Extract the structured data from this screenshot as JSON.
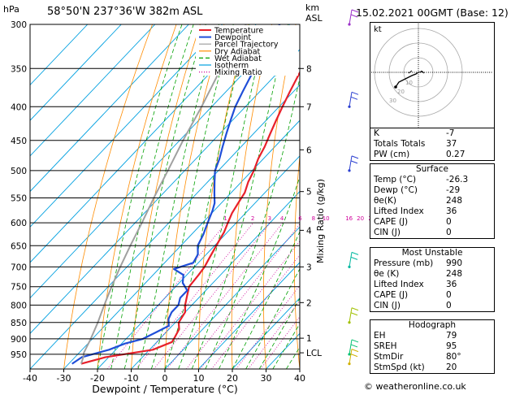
{
  "header": {
    "pressure_unit": "hPa",
    "location": "58°50'N  237°36'W  382m  ASL",
    "height_unit_1": "km",
    "height_unit_2": "ASL",
    "datetime": "15.02.2021  00GMT  (Base: 12)"
  },
  "chart_data": {
    "type": "line",
    "xlabel": "Dewpoint / Temperature (°C)",
    "ylabel": "hPa",
    "right_axis_label": "Mixing Ratio (g/kg)",
    "xlim": [
      -40,
      40
    ],
    "ylim": [
      1000,
      300
    ],
    "x_ticks": [
      -40,
      -30,
      -20,
      -10,
      0,
      10,
      20,
      30,
      40
    ],
    "pressure_levels": [
      300,
      350,
      400,
      450,
      500,
      550,
      600,
      650,
      700,
      750,
      800,
      850,
      900,
      950
    ],
    "km_ticks": [
      {
        "label": "8",
        "p": 350
      },
      {
        "label": "7",
        "p": 400
      },
      {
        "label": "6",
        "p": 465
      },
      {
        "label": "5",
        "p": 538
      },
      {
        "label": "4",
        "p": 616
      },
      {
        "label": "3",
        "p": 700
      },
      {
        "label": "2",
        "p": 793
      },
      {
        "label": "1",
        "p": 898
      },
      {
        "label": "LCL",
        "p": 945
      }
    ],
    "mixing_ratio_labels": [
      "1",
      "2",
      "3",
      "4",
      "6",
      "8",
      "10",
      "16",
      "20",
      "25"
    ],
    "legend": [
      "Temperature",
      "Dewpoint",
      "Parcel Trajectory",
      "Dry Adiabat",
      "Wet Adiabat",
      "Isotherm",
      "Mixing Ratio"
    ],
    "legend_placement": "top-left",
    "series": [
      {
        "name": "Temperature",
        "color": "#e8202a",
        "points": [
          [
            -26.3,
            982
          ],
          [
            -21,
            960
          ],
          [
            -9,
            935
          ],
          [
            -5.5,
            910
          ],
          [
            -6,
            895
          ],
          [
            -7,
            870
          ],
          [
            -9,
            850
          ],
          [
            -10,
            820
          ],
          [
            -12,
            800
          ],
          [
            -14,
            775
          ],
          [
            -16,
            750
          ],
          [
            -16.5,
            720
          ],
          [
            -17,
            700
          ],
          [
            -18,
            680
          ],
          [
            -19,
            660
          ],
          [
            -20,
            640
          ],
          [
            -21,
            620
          ],
          [
            -22.5,
            600
          ],
          [
            -24,
            580
          ],
          [
            -25,
            560
          ],
          [
            -26,
            540
          ],
          [
            -28,
            520
          ],
          [
            -29.5,
            500
          ],
          [
            -31.5,
            480
          ],
          [
            -33,
            460
          ],
          [
            -35,
            440
          ],
          [
            -37,
            420
          ],
          [
            -39,
            400
          ],
          [
            -41,
            380
          ],
          [
            -43,
            360
          ],
          [
            -45,
            340
          ],
          [
            -47,
            320
          ],
          [
            -49,
            300
          ]
        ]
      },
      {
        "name": "Dewpoint",
        "color": "#1f4ed8",
        "points": [
          [
            -29,
            982
          ],
          [
            -28,
            960
          ],
          [
            -22,
            935
          ],
          [
            -19,
            915
          ],
          [
            -15,
            900
          ],
          [
            -13,
            880
          ],
          [
            -11,
            860
          ],
          [
            -12,
            850
          ],
          [
            -13,
            840
          ],
          [
            -14,
            820
          ],
          [
            -14,
            800
          ],
          [
            -15.5,
            780
          ],
          [
            -15.5,
            760
          ],
          [
            -19,
            740
          ],
          [
            -21,
            720
          ],
          [
            -25.5,
            705
          ],
          [
            -21.5,
            690
          ],
          [
            -22.5,
            670
          ],
          [
            -25,
            650
          ],
          [
            -26.5,
            625
          ],
          [
            -28.5,
            600
          ],
          [
            -30.5,
            575
          ],
          [
            -32,
            560
          ],
          [
            -35,
            540
          ],
          [
            -38,
            520
          ],
          [
            -41,
            500
          ],
          [
            -43,
            480
          ],
          [
            -45.5,
            460
          ],
          [
            -48,
            440
          ],
          [
            -50.5,
            420
          ],
          [
            -53,
            400
          ],
          [
            -55,
            380
          ],
          [
            -57,
            360
          ],
          [
            -59,
            340
          ],
          [
            -61,
            320
          ],
          [
            -63,
            300
          ]
        ]
      },
      {
        "name": "Parcel Trajectory",
        "color": "#a0a0a0",
        "points": [
          [
            -26.3,
            982
          ],
          [
            -27.5,
            960
          ],
          [
            -28.6,
            945
          ],
          [
            -30.5,
            900
          ],
          [
            -33,
            850
          ],
          [
            -36,
            800
          ],
          [
            -39,
            750
          ],
          [
            -42,
            700
          ],
          [
            -45,
            650
          ],
          [
            -48,
            600
          ],
          [
            -51.5,
            550
          ],
          [
            -55,
            500
          ],
          [
            -59,
            450
          ],
          [
            -63,
            400
          ],
          [
            -68,
            350
          ],
          [
            -73,
            300
          ]
        ]
      }
    ],
    "dry_adiabat_color": "#ff8c00",
    "wet_adiabat_color": "#00a000",
    "isotherm_color": "#00a0e0",
    "mixing_ratio_color": "#d0009a",
    "wind_barbs": [
      {
        "p": 300,
        "color": "#9b30c8"
      },
      {
        "p": 400,
        "color": "#2a3ed0"
      },
      {
        "p": 500,
        "color": "#2a3ed0"
      },
      {
        "p": 700,
        "color": "#00b8a0"
      },
      {
        "p": 850,
        "color": "#a0c000"
      },
      {
        "p": 950,
        "color": "#00c070"
      },
      {
        "p": 982,
        "color": "#d0b000"
      }
    ]
  },
  "hodograph": {
    "unit": "kt",
    "ring_labels": [
      "10",
      "20",
      "30"
    ]
  },
  "indices": [
    {
      "label": "K",
      "value": "-7"
    },
    {
      "label": "Totals Totals",
      "value": "37"
    },
    {
      "label": "PW (cm)",
      "value": "0.27"
    }
  ],
  "surface": {
    "title": "Surface",
    "rows": [
      {
        "label": "Temp (°C)",
        "value": "-26.3"
      },
      {
        "label": "Dewp (°C)",
        "value": "-29"
      },
      {
        "label": "θe(K)",
        "value": "248"
      },
      {
        "label": "Lifted Index",
        "value": "36"
      },
      {
        "label": "CAPE (J)",
        "value": "0"
      },
      {
        "label": "CIN (J)",
        "value": "0"
      }
    ]
  },
  "most_unstable": {
    "title": "Most Unstable",
    "rows": [
      {
        "label": "Pressure (mb)",
        "value": "990"
      },
      {
        "label": "θe (K)",
        "value": "248"
      },
      {
        "label": "Lifted Index",
        "value": "36"
      },
      {
        "label": "CAPE (J)",
        "value": "0"
      },
      {
        "label": "CIN (J)",
        "value": "0"
      }
    ]
  },
  "hodograph_table": {
    "title": "Hodograph",
    "rows": [
      {
        "label": "EH",
        "value": "79"
      },
      {
        "label": "SREH",
        "value": "95"
      },
      {
        "label": "StmDir",
        "value": "80°"
      },
      {
        "label": "StmSpd (kt)",
        "value": "20"
      }
    ]
  },
  "footer": {
    "credit": "© weatheronline.co.uk"
  }
}
